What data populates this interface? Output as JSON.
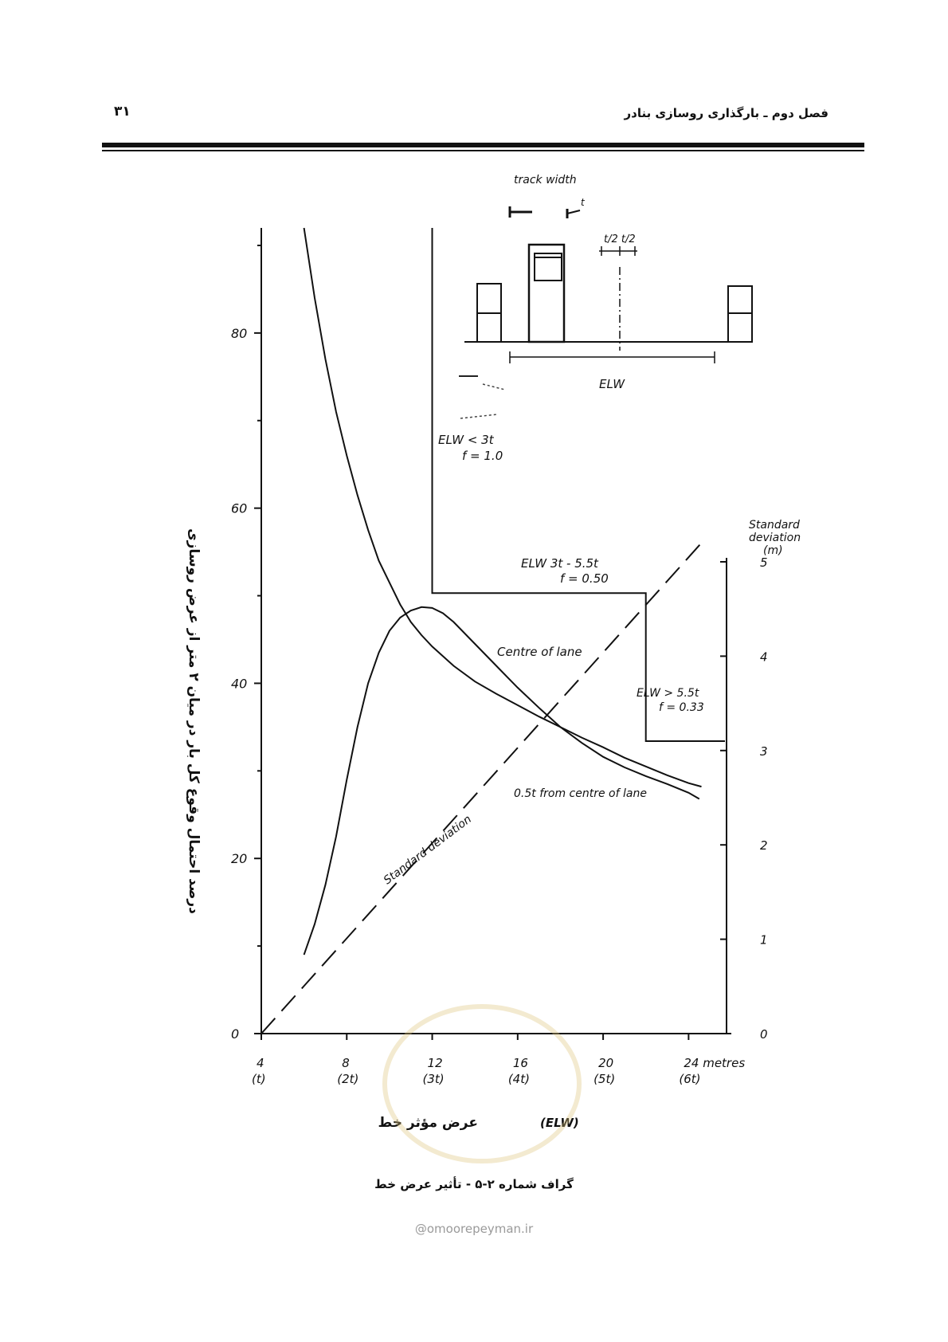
{
  "header": {
    "chapter_title": "فصل دوم ـ بارگذاری روسازی بنادر",
    "page_number": "۳۱"
  },
  "caption": "گراف شماره ۲-۵ - تأثیر عرض خط",
  "watermark": "@omoorepeyman.ir",
  "chart_data": {
    "type": "line",
    "y_title": "درصد احتمال وقوع کل بار در میان ۲ متر از عرض روسازی",
    "x_title_fa": "عرض مؤثر خط",
    "x_title_en": "(ELW)",
    "x_ticks": [
      {
        "value": 4,
        "label": "4",
        "sub": "(t)"
      },
      {
        "value": 8,
        "label": "8",
        "sub": "(2t)"
      },
      {
        "value": 12,
        "label": "12",
        "sub": "(3t)"
      },
      {
        "value": 16,
        "label": "16",
        "sub": "(4t)"
      },
      {
        "value": 20,
        "label": "20",
        "sub": "(5t)"
      },
      {
        "value": 24,
        "label": "24 metres",
        "sub": "(6t)"
      }
    ],
    "xlim": [
      4,
      26
    ],
    "y_ticks": [
      {
        "value": 0,
        "label": "0"
      },
      {
        "value": 20,
        "label": "20"
      },
      {
        "value": 40,
        "label": "40"
      },
      {
        "value": 60,
        "label": "60"
      },
      {
        "value": 80,
        "label": "80"
      }
    ],
    "ylim": [
      0,
      92
    ],
    "y2_title": [
      "Standard",
      "deviation",
      "(m)"
    ],
    "y2_ticks": [
      {
        "value": 0,
        "label": "0"
      },
      {
        "value": 1,
        "label": "1"
      },
      {
        "value": 2,
        "label": "2"
      },
      {
        "value": 3,
        "label": "3"
      },
      {
        "value": 4,
        "label": "4"
      },
      {
        "value": 5,
        "label": "5"
      }
    ],
    "y2lim": [
      0,
      5.4
    ],
    "series": [
      {
        "name": "Centre of lane",
        "axis": "left",
        "style": "solid",
        "x": [
          6.0,
          6.5,
          7.0,
          7.5,
          8.0,
          8.5,
          9.0,
          9.5,
          10.0,
          10.5,
          11.0,
          11.5,
          12.0,
          13.0,
          14.0,
          15.0,
          16.0,
          17.0,
          18.0,
          19.0,
          20.0,
          21.0,
          22.0,
          23.0,
          24.0,
          24.6
        ],
        "y": [
          92.0,
          84.0,
          77.0,
          71.0,
          66.0,
          61.5,
          57.5,
          54.0,
          51.5,
          49.0,
          47.0,
          45.5,
          44.2,
          42.0,
          40.2,
          38.8,
          37.5,
          36.2,
          35.0,
          33.8,
          32.7,
          31.5,
          30.5,
          29.5,
          28.6,
          28.2
        ]
      },
      {
        "name": "0.5t from centre of lane",
        "axis": "left",
        "style": "solid",
        "x": [
          6.0,
          6.5,
          7.0,
          7.5,
          8.0,
          8.5,
          9.0,
          9.5,
          10.0,
          10.5,
          11.0,
          11.5,
          12.0,
          12.5,
          13.0,
          14.0,
          15.0,
          16.0,
          17.0,
          18.0,
          19.0,
          20.0,
          21.0,
          22.0,
          23.0,
          24.0,
          24.5
        ],
        "y": [
          9.0,
          12.5,
          17.0,
          22.5,
          29.0,
          35.0,
          40.0,
          43.5,
          46.0,
          47.5,
          48.3,
          48.7,
          48.6,
          48.0,
          47.0,
          44.5,
          42.0,
          39.5,
          37.2,
          35.0,
          33.2,
          31.6,
          30.4,
          29.4,
          28.5,
          27.5,
          26.8
        ]
      },
      {
        "name": "Standard deviation",
        "axis": "right",
        "style": "dashed",
        "x": [
          4.0,
          24.6
        ],
        "y": [
          0.0,
          5.2
        ]
      }
    ],
    "f_step": {
      "x": [
        12.0,
        12.0,
        22.0,
        22.0,
        25.7
      ],
      "y": [
        92.0,
        50.3,
        50.3,
        33.4,
        33.4
      ]
    },
    "annotations": {
      "track_width": "track width",
      "t": "t",
      "half_t": "t/2 t/2",
      "elw": "ELW",
      "region1_line1": "ELW < 3t",
      "region1_line2": "f = 1.0",
      "region2_line1": "ELW 3t - 5.5t",
      "region2_line2": "f = 0.50",
      "region3_line1": "ELW > 5.5t",
      "region3_line2": "f = 0.33",
      "std_dev_label": "Standard deviation"
    }
  }
}
